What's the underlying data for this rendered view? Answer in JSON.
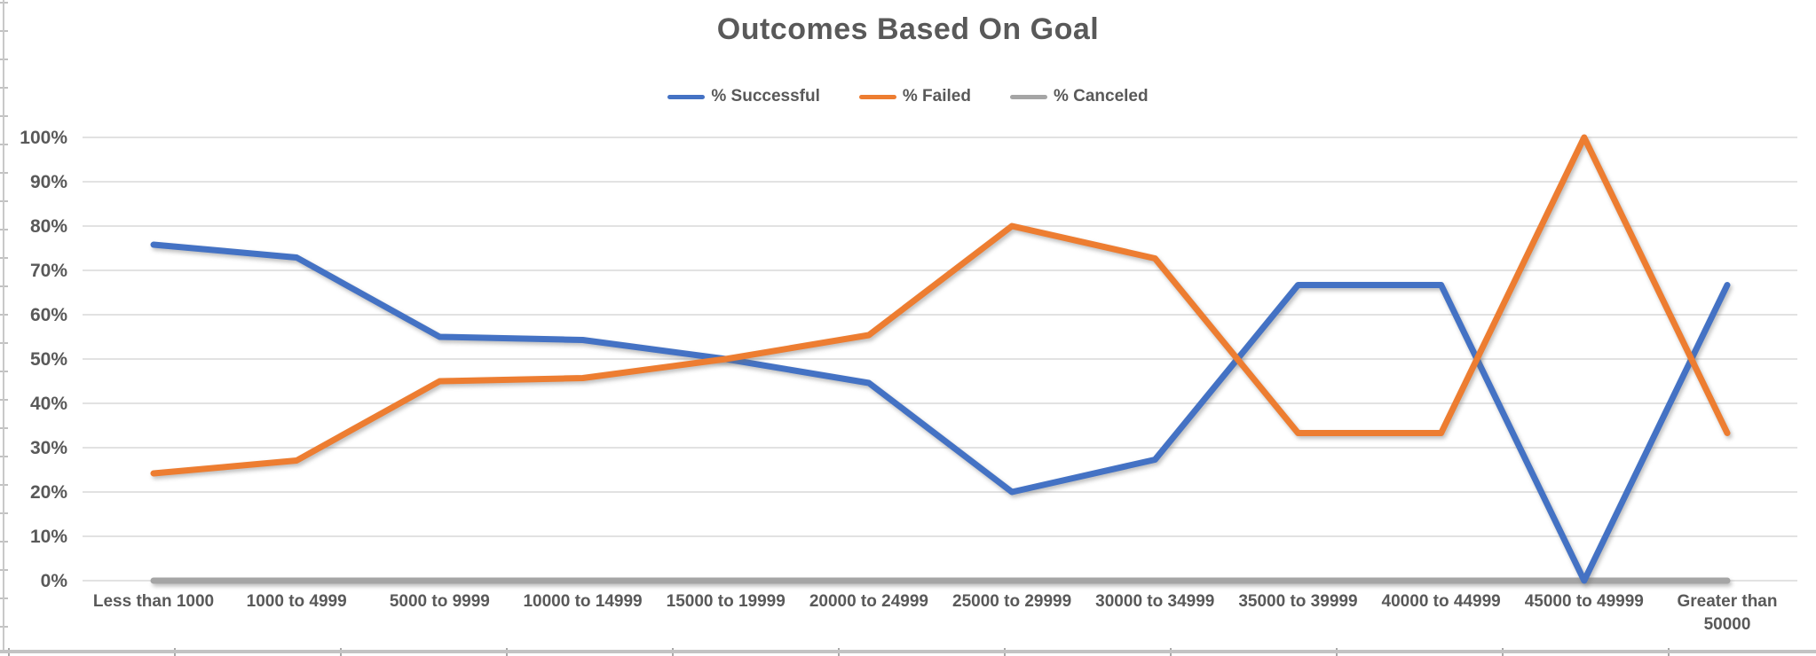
{
  "chart_data": {
    "type": "line",
    "title": "Outcomes Based On Goal",
    "legend_position": "top",
    "grid": true,
    "categories": [
      "Less than 1000",
      "1000 to 4999",
      "5000 to 9999",
      "10000 to 14999",
      "15000 to 19999",
      "20000 to 24999",
      "25000 to 29999",
      "30000 to 34999",
      "35000 to 39999",
      "40000 to 44999",
      "45000 to 49999",
      "Greater than\n50000"
    ],
    "series": [
      {
        "name": "% Successful",
        "color": "#4472C4",
        "values": [
          75.8,
          72.9,
          55.0,
          54.3,
          50.0,
          44.6,
          20.0,
          27.3,
          66.7,
          66.7,
          0.0,
          66.7
        ]
      },
      {
        "name": "% Failed",
        "color": "#ED7D31",
        "values": [
          24.2,
          27.1,
          45.0,
          45.7,
          50.0,
          55.4,
          80.0,
          72.7,
          33.3,
          33.3,
          100.0,
          33.3
        ]
      },
      {
        "name": "% Canceled",
        "color": "#A5A5A5",
        "values": [
          0,
          0,
          0,
          0,
          0,
          0,
          0,
          0,
          0,
          0,
          0,
          0
        ]
      }
    ],
    "y_axis": {
      "min": 0,
      "max": 100,
      "step": 10,
      "unit": "%",
      "tick_labels": [
        "0%",
        "10%",
        "20%",
        "30%",
        "40%",
        "50%",
        "60%",
        "70%",
        "80%",
        "90%",
        "100%"
      ]
    },
    "ylim": [
      0,
      100
    ]
  },
  "colors": {
    "gridline": "#D9D9D9",
    "axis_text": "#595959",
    "title_text": "#595959",
    "legend_text": "#595959",
    "worksheet_edge": "#C9C9C9"
  }
}
